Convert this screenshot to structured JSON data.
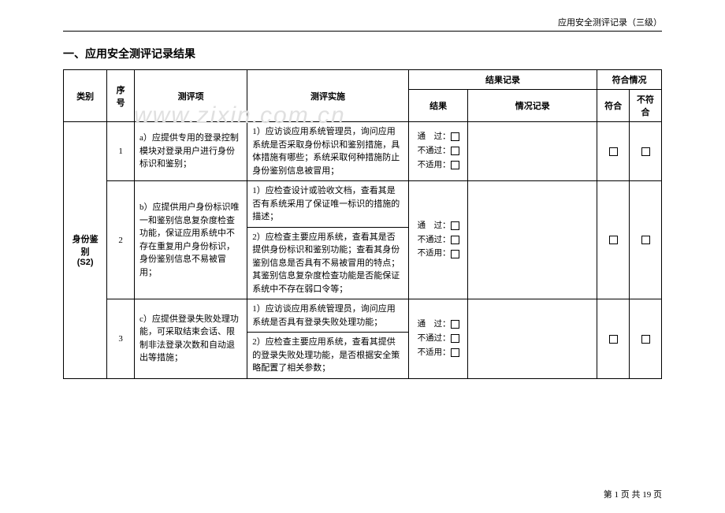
{
  "header": {
    "right_text": "应用安全测评记录（三级）"
  },
  "section": {
    "title": "一、应用安全测评记录结果"
  },
  "watermark": "www.zixin.com.cn",
  "table": {
    "headers": {
      "category": "类别",
      "number": "序号",
      "item": "测评项",
      "impl": "测评实施",
      "result_record": "结果记录",
      "result": "结果",
      "situation": "情况记录",
      "compliance": "符合情况",
      "conform": "符合",
      "nonconform": "不符合"
    },
    "category_label": "身份鉴别\n(S2)",
    "result_options": {
      "pass": "通　过：",
      "fail": "不通过：",
      "na": "不适用："
    },
    "rows": [
      {
        "num": "1",
        "item": "a）应提供专用的登录控制模块对登录用户进行身份标识和鉴别；",
        "impls": [
          "1）应访谈应用系统管理员，询问应用系统是否采取身份标识和鉴别措施，具体措施有哪些；系统采取何种措施防止身份鉴别信息被冒用；"
        ],
        "result_span": 1
      },
      {
        "num": "2",
        "item": "b）应提供用户身份标识唯一和鉴别信息复杂度检查功能，保证应用系统中不存在重复用户身份标识，身份鉴别信息不易被冒用；",
        "impls": [
          "1）应检查设计或验收文档，查看其是否有系统采用了保证唯一标识的措施的描述；",
          "2）应检查主要应用系统，查看其是否提供身份标识和鉴别功能；查看其身份鉴别信息是否具有不易被冒用的特点；其鉴别信息复杂度检查功能是否能保证系统中不存在弱口令等；"
        ],
        "result_span": 2
      },
      {
        "num": "3",
        "item": "c）应提供登录失败处理功能，可采取结束会话、限制非法登录次数和自动退出等措施；",
        "impls": [
          "1）应访谈应用系统管理员，询问应用系统是否具有登录失败处理功能；",
          "2）应检查主要应用系统，查看其提供的登录失败处理功能，是否根据安全策略配置了相关参数；"
        ],
        "result_span": 2
      }
    ]
  },
  "footer": {
    "page_text": "第 1 页 共 19 页"
  }
}
